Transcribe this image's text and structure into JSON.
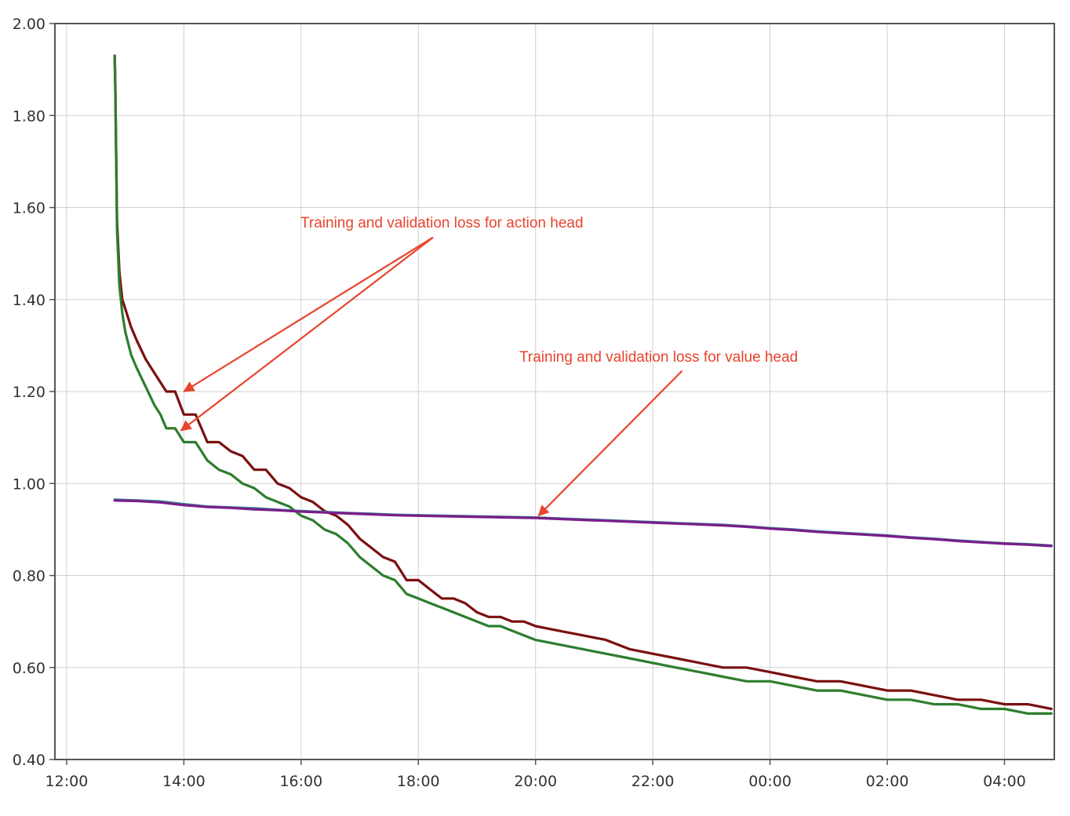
{
  "chart_data": {
    "type": "line",
    "title": "",
    "xlabel": "",
    "ylabel": "",
    "x_unit": "hours since 12:00 (clock time, wraps past midnight)",
    "xlim": [
      -0.2,
      16.85
    ],
    "ylim": [
      0.4,
      2.0
    ],
    "grid": true,
    "legend": "none",
    "x_ticks": [
      {
        "value": 0,
        "label": "12:00"
      },
      {
        "value": 2,
        "label": "14:00"
      },
      {
        "value": 4,
        "label": "16:00"
      },
      {
        "value": 6,
        "label": "18:00"
      },
      {
        "value": 8,
        "label": "20:00"
      },
      {
        "value": 10,
        "label": "22:00"
      },
      {
        "value": 12,
        "label": "00:00"
      },
      {
        "value": 14,
        "label": "02:00"
      },
      {
        "value": 16,
        "label": "04:00"
      }
    ],
    "y_ticks": [
      {
        "value": 0.4,
        "label": "0.40"
      },
      {
        "value": 0.6,
        "label": "0.60"
      },
      {
        "value": 0.8,
        "label": "0.80"
      },
      {
        "value": 1.0,
        "label": "1.00"
      },
      {
        "value": 1.2,
        "label": "1.20"
      },
      {
        "value": 1.4,
        "label": "1.40"
      },
      {
        "value": 1.6,
        "label": "1.60"
      },
      {
        "value": 1.8,
        "label": "1.80"
      },
      {
        "value": 2.0,
        "label": "2.00"
      }
    ],
    "series": [
      {
        "color": "#7b1010",
        "x": [
          0.82,
          0.83,
          0.86,
          0.9,
          0.95,
          1.0,
          1.1,
          1.2,
          1.35,
          1.5,
          1.6,
          1.7,
          1.85,
          2.0,
          2.2,
          2.4,
          2.6,
          2.8,
          3.0,
          3.2,
          3.4,
          3.6,
          3.8,
          4.0,
          4.2,
          4.4,
          4.6,
          4.8,
          5.0,
          5.2,
          5.4,
          5.6,
          5.8,
          6.0,
          6.2,
          6.4,
          6.6,
          6.8,
          7.0,
          7.2,
          7.4,
          7.6,
          7.8,
          8.0,
          8.4,
          8.8,
          9.2,
          9.6,
          10.0,
          10.4,
          10.8,
          11.2,
          11.6,
          12.0,
          12.4,
          12.8,
          13.2,
          13.6,
          14.0,
          14.4,
          14.8,
          15.2,
          15.6,
          16.0,
          16.4,
          16.8
        ],
        "y": [
          1.93,
          1.86,
          1.57,
          1.46,
          1.4,
          1.38,
          1.34,
          1.31,
          1.27,
          1.24,
          1.22,
          1.2,
          1.2,
          1.15,
          1.15,
          1.09,
          1.09,
          1.07,
          1.06,
          1.03,
          1.03,
          1.0,
          0.99,
          0.97,
          0.96,
          0.94,
          0.93,
          0.91,
          0.88,
          0.86,
          0.84,
          0.83,
          0.79,
          0.79,
          0.77,
          0.75,
          0.75,
          0.74,
          0.72,
          0.71,
          0.71,
          0.7,
          0.7,
          0.69,
          0.68,
          0.67,
          0.66,
          0.64,
          0.63,
          0.62,
          0.61,
          0.6,
          0.6,
          0.59,
          0.58,
          0.57,
          0.57,
          0.56,
          0.55,
          0.55,
          0.54,
          0.53,
          0.53,
          0.52,
          0.52,
          0.51
        ]
      },
      {
        "color": "#2e7d2e",
        "x": [
          0.82,
          0.83,
          0.86,
          0.9,
          0.95,
          1.0,
          1.1,
          1.2,
          1.35,
          1.5,
          1.6,
          1.7,
          1.85,
          2.0,
          2.2,
          2.4,
          2.6,
          2.8,
          3.0,
          3.2,
          3.4,
          3.6,
          3.8,
          4.0,
          4.2,
          4.4,
          4.6,
          4.8,
          5.0,
          5.2,
          5.4,
          5.6,
          5.8,
          6.0,
          6.2,
          6.4,
          6.6,
          6.8,
          7.0,
          7.2,
          7.4,
          7.6,
          7.8,
          8.0,
          8.4,
          8.8,
          9.2,
          9.6,
          10.0,
          10.4,
          10.8,
          11.2,
          11.6,
          12.0,
          12.4,
          12.8,
          13.2,
          13.6,
          14.0,
          14.4,
          14.8,
          15.2,
          15.6,
          16.0,
          16.4,
          16.8
        ],
        "y": [
          1.93,
          1.86,
          1.55,
          1.43,
          1.37,
          1.33,
          1.28,
          1.25,
          1.21,
          1.17,
          1.15,
          1.12,
          1.12,
          1.09,
          1.09,
          1.05,
          1.03,
          1.02,
          1.0,
          0.99,
          0.97,
          0.96,
          0.95,
          0.93,
          0.92,
          0.9,
          0.89,
          0.87,
          0.84,
          0.82,
          0.8,
          0.79,
          0.76,
          0.75,
          0.74,
          0.73,
          0.72,
          0.71,
          0.7,
          0.69,
          0.69,
          0.68,
          0.67,
          0.66,
          0.65,
          0.64,
          0.63,
          0.62,
          0.61,
          0.6,
          0.59,
          0.58,
          0.57,
          0.57,
          0.56,
          0.55,
          0.55,
          0.54,
          0.53,
          0.53,
          0.52,
          0.52,
          0.51,
          0.51,
          0.5,
          0.5
        ]
      },
      {
        "color": "#2e8b8b",
        "x": [
          0.82,
          1.2,
          1.6,
          2.0,
          2.4,
          2.8,
          3.2,
          3.6,
          4.0,
          4.4,
          4.8,
          5.2,
          5.6,
          6.0,
          6.4,
          6.8,
          7.2,
          7.6,
          8.0,
          8.4,
          8.8,
          9.2,
          9.6,
          10.0,
          10.4,
          10.8,
          11.2,
          11.6,
          12.0,
          12.4,
          12.8,
          13.2,
          13.6,
          14.0,
          14.4,
          14.8,
          15.2,
          15.6,
          16.0,
          16.4,
          16.8
        ],
        "y": [
          0.965,
          0.963,
          0.961,
          0.955,
          0.95,
          0.948,
          0.946,
          0.943,
          0.94,
          0.938,
          0.936,
          0.934,
          0.932,
          0.931,
          0.93,
          0.929,
          0.928,
          0.927,
          0.926,
          0.924,
          0.922,
          0.92,
          0.918,
          0.916,
          0.914,
          0.912,
          0.91,
          0.907,
          0.903,
          0.9,
          0.896,
          0.893,
          0.89,
          0.887,
          0.883,
          0.88,
          0.876,
          0.873,
          0.87,
          0.868,
          0.865
        ]
      },
      {
        "color": "#7b1e8b",
        "x": [
          0.82,
          1.2,
          1.6,
          2.0,
          2.4,
          2.8,
          3.2,
          3.6,
          4.0,
          4.4,
          4.8,
          5.2,
          5.6,
          6.0,
          6.4,
          6.8,
          7.2,
          7.6,
          8.0,
          8.4,
          8.8,
          9.2,
          9.6,
          10.0,
          10.4,
          10.8,
          11.2,
          11.6,
          12.0,
          12.4,
          12.8,
          13.2,
          13.6,
          14.0,
          14.4,
          14.8,
          15.2,
          15.6,
          16.0,
          16.4,
          16.8
        ],
        "y": [
          0.963,
          0.962,
          0.959,
          0.953,
          0.949,
          0.947,
          0.944,
          0.942,
          0.939,
          0.937,
          0.935,
          0.933,
          0.931,
          0.93,
          0.929,
          0.928,
          0.927,
          0.926,
          0.925,
          0.923,
          0.921,
          0.919,
          0.917,
          0.915,
          0.913,
          0.911,
          0.909,
          0.906,
          0.902,
          0.899,
          0.895,
          0.892,
          0.889,
          0.886,
          0.882,
          0.879,
          0.875,
          0.872,
          0.869,
          0.867,
          0.864
        ]
      }
    ],
    "annotations": [
      {
        "text": "Training and validation loss for action head",
        "arrows": [
          {
            "tail": {
              "x": 6.25,
              "y": 1.535
            },
            "head": {
              "x": 2.0,
              "y": 1.2
            }
          },
          {
            "tail": {
              "x": 6.25,
              "y": 1.535
            },
            "head": {
              "x": 1.95,
              "y": 1.115
            }
          }
        ]
      },
      {
        "text": "Training and validation loss for value head",
        "arrows": [
          {
            "tail": {
              "x": 10.5,
              "y": 1.245
            },
            "head": {
              "x": 8.05,
              "y": 0.93
            }
          }
        ]
      }
    ]
  }
}
